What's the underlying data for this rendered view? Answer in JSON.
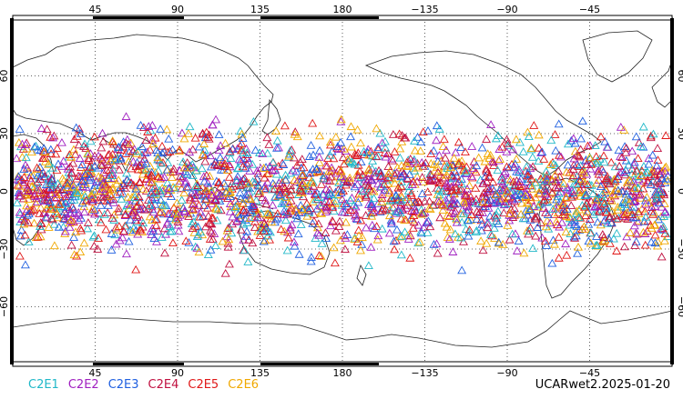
{
  "map": {
    "top_lon_labels": [
      "45",
      "90",
      "135",
      "180",
      "−135",
      "−90",
      "−45"
    ],
    "bottom_lon_labels": [
      "45",
      "90",
      "135",
      "180",
      "−135",
      "−90",
      "−45"
    ],
    "lat_labels": [
      "60",
      "30",
      "0",
      "−30",
      "−60"
    ],
    "grid": "dotted",
    "marker_shape": "triangle-outline",
    "lat_coverage": [
      -45,
      45
    ],
    "legend": [
      {
        "name": "C2E1",
        "color": "#20b8c8"
      },
      {
        "name": "C2E2",
        "color": "#a020c0"
      },
      {
        "name": "C2E3",
        "color": "#2060e0"
      },
      {
        "name": "C2E4",
        "color": "#c01040"
      },
      {
        "name": "C2E5",
        "color": "#e01818"
      },
      {
        "name": "C2E6",
        "color": "#f0a800"
      }
    ],
    "caption": "UCARwet2.2025-01-20"
  }
}
